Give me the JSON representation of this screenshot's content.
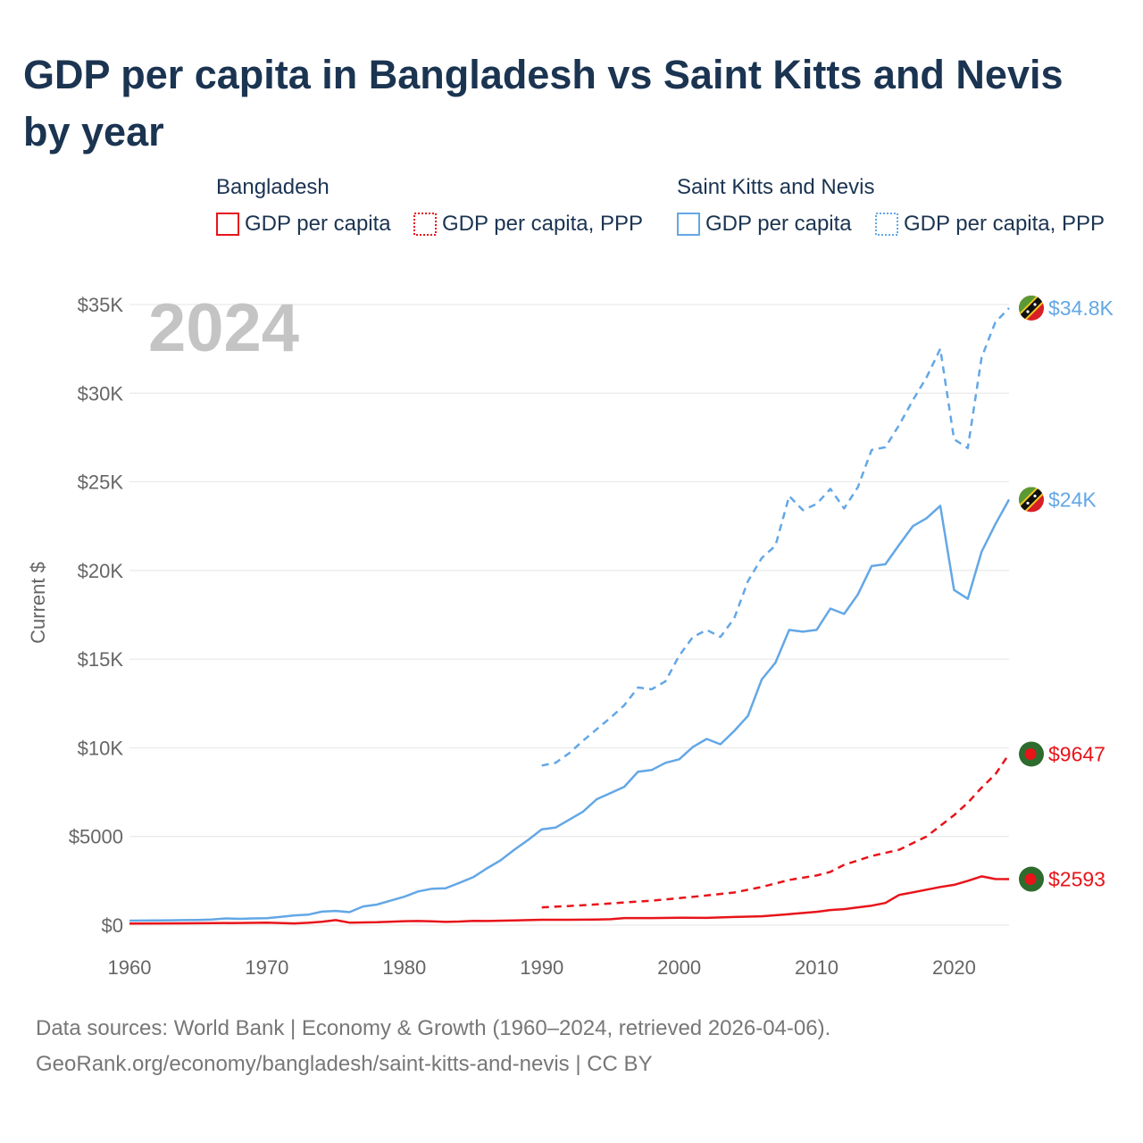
{
  "title": "GDP per capita in Bangladesh vs Saint Kitts and Nevis by year",
  "legend": {
    "groups": [
      {
        "name": "Bangladesh",
        "items": [
          {
            "label": "GDP per capita",
            "color": "#e8141a",
            "style": "solid"
          },
          {
            "label": "GDP per capita, PPP",
            "color": "#e8141a",
            "style": "dotted"
          }
        ]
      },
      {
        "name": "Saint Kitts and Nevis",
        "items": [
          {
            "label": "GDP per capita",
            "color": "#63a7e6",
            "style": "solid"
          },
          {
            "label": "GDP per capita, PPP",
            "color": "#63a7e6",
            "style": "dotted"
          }
        ]
      }
    ]
  },
  "year_watermark": "2024",
  "sources": {
    "line1": "Data sources: World Bank | Economy & Growth (1960–2024, retrieved 2026-04-06).",
    "line2": "GeoRank.org/economy/bangladesh/saint-kitts-and-nevis | CC BY"
  },
  "chart_data": {
    "type": "line",
    "title": "GDP per capita in Bangladesh vs Saint Kitts and Nevis by year",
    "xlabel": "",
    "ylabel": "Current $",
    "xlim": [
      1960,
      2024
    ],
    "ylim": [
      0,
      35000
    ],
    "x_ticks": [
      1960,
      1970,
      1980,
      1990,
      2000,
      2010,
      2020
    ],
    "x_tick_labels": [
      "1960",
      "1970",
      "1980",
      "1990",
      "2000",
      "2010",
      "2020"
    ],
    "y_ticks": [
      0,
      5000,
      10000,
      15000,
      20000,
      25000,
      30000,
      35000
    ],
    "y_tick_labels": [
      "$0",
      "$5000",
      "$10K",
      "$15K",
      "$20K",
      "$25K",
      "$30K",
      "$35K"
    ],
    "grid": true,
    "series": [
      {
        "name": "Saint Kitts and Nevis — GDP per capita, PPP",
        "color": "#63a7e6",
        "dash": "dashed",
        "end_label": "$34.8K",
        "flag": "saint-kitts-and-nevis",
        "points": [
          [
            1990,
            9000
          ],
          [
            1991,
            9150
          ],
          [
            1992,
            9700
          ],
          [
            1993,
            10400
          ],
          [
            1994,
            11050
          ],
          [
            1995,
            11700
          ],
          [
            1996,
            12400
          ],
          [
            1997,
            13400
          ],
          [
            1998,
            13300
          ],
          [
            1999,
            13750
          ],
          [
            2000,
            15200
          ],
          [
            2001,
            16250
          ],
          [
            2002,
            16650
          ],
          [
            2003,
            16250
          ],
          [
            2004,
            17300
          ],
          [
            2005,
            19400
          ],
          [
            2006,
            20700
          ],
          [
            2007,
            21400
          ],
          [
            2008,
            24200
          ],
          [
            2009,
            23400
          ],
          [
            2010,
            23750
          ],
          [
            2011,
            24600
          ],
          [
            2012,
            23500
          ],
          [
            2013,
            24700
          ],
          [
            2014,
            26800
          ],
          [
            2015,
            26950
          ],
          [
            2016,
            28200
          ],
          [
            2017,
            29600
          ],
          [
            2018,
            30900
          ],
          [
            2019,
            32500
          ],
          [
            2020,
            27400
          ],
          [
            2021,
            26900
          ],
          [
            2022,
            32000
          ],
          [
            2023,
            34000
          ],
          [
            2024,
            34800
          ]
        ]
      },
      {
        "name": "Saint Kitts and Nevis — GDP per capita",
        "color": "#63a7e6",
        "dash": "solid",
        "end_label": "$24K",
        "flag": "saint-kitts-and-nevis",
        "points": [
          [
            1960,
            250
          ],
          [
            1961,
            255
          ],
          [
            1962,
            260
          ],
          [
            1963,
            270
          ],
          [
            1964,
            280
          ],
          [
            1965,
            290
          ],
          [
            1966,
            310
          ],
          [
            1967,
            380
          ],
          [
            1968,
            350
          ],
          [
            1969,
            380
          ],
          [
            1970,
            390
          ],
          [
            1971,
            470
          ],
          [
            1972,
            550
          ],
          [
            1973,
            590
          ],
          [
            1974,
            760
          ],
          [
            1975,
            800
          ],
          [
            1976,
            730
          ],
          [
            1977,
            1050
          ],
          [
            1978,
            1160
          ],
          [
            1979,
            1380
          ],
          [
            1980,
            1600
          ],
          [
            1981,
            1900
          ],
          [
            1982,
            2050
          ],
          [
            1983,
            2080
          ],
          [
            1984,
            2380
          ],
          [
            1985,
            2700
          ],
          [
            1986,
            3200
          ],
          [
            1987,
            3650
          ],
          [
            1988,
            4250
          ],
          [
            1989,
            4800
          ],
          [
            1990,
            5400
          ],
          [
            1991,
            5500
          ],
          [
            1992,
            5950
          ],
          [
            1993,
            6400
          ],
          [
            1994,
            7100
          ],
          [
            1995,
            7450
          ],
          [
            1996,
            7800
          ],
          [
            1997,
            8650
          ],
          [
            1998,
            8750
          ],
          [
            1999,
            9150
          ],
          [
            2000,
            9350
          ],
          [
            2001,
            10050
          ],
          [
            2002,
            10500
          ],
          [
            2003,
            10200
          ],
          [
            2004,
            10950
          ],
          [
            2005,
            11800
          ],
          [
            2006,
            13850
          ],
          [
            2007,
            14800
          ],
          [
            2008,
            16650
          ],
          [
            2009,
            16550
          ],
          [
            2010,
            16650
          ],
          [
            2011,
            17850
          ],
          [
            2012,
            17550
          ],
          [
            2013,
            18650
          ],
          [
            2014,
            20250
          ],
          [
            2015,
            20350
          ],
          [
            2016,
            21450
          ],
          [
            2017,
            22500
          ],
          [
            2018,
            22950
          ],
          [
            2019,
            23650
          ],
          [
            2020,
            18900
          ],
          [
            2021,
            18400
          ],
          [
            2022,
            21050
          ],
          [
            2023,
            22600
          ],
          [
            2024,
            24000
          ]
        ]
      },
      {
        "name": "Bangladesh — GDP per capita, PPP",
        "color": "#e8141a",
        "dash": "dashed",
        "end_label": "$9647",
        "flag": "bangladesh",
        "points": [
          [
            1990,
            1000
          ],
          [
            1992,
            1080
          ],
          [
            1994,
            1170
          ],
          [
            1996,
            1280
          ],
          [
            1998,
            1380
          ],
          [
            2000,
            1520
          ],
          [
            2002,
            1670
          ],
          [
            2004,
            1840
          ],
          [
            2006,
            2150
          ],
          [
            2008,
            2550
          ],
          [
            2010,
            2800
          ],
          [
            2011,
            3000
          ],
          [
            2012,
            3400
          ],
          [
            2014,
            3900
          ],
          [
            2016,
            4250
          ],
          [
            2018,
            5000
          ],
          [
            2019,
            5600
          ],
          [
            2020,
            6200
          ],
          [
            2021,
            6900
          ],
          [
            2022,
            7750
          ],
          [
            2023,
            8500
          ],
          [
            2024,
            9647
          ]
        ]
      },
      {
        "name": "Bangladesh — GDP per capita",
        "color": "#e8141a",
        "dash": "solid",
        "end_label": "$2593",
        "flag": "bangladesh",
        "points": [
          [
            1960,
            90
          ],
          [
            1962,
            95
          ],
          [
            1964,
            100
          ],
          [
            1966,
            110
          ],
          [
            1968,
            120
          ],
          [
            1970,
            140
          ],
          [
            1972,
            95
          ],
          [
            1973,
            130
          ],
          [
            1974,
            190
          ],
          [
            1975,
            280
          ],
          [
            1976,
            140
          ],
          [
            1978,
            160
          ],
          [
            1980,
            220
          ],
          [
            1981,
            230
          ],
          [
            1982,
            210
          ],
          [
            1983,
            180
          ],
          [
            1984,
            200
          ],
          [
            1985,
            240
          ],
          [
            1986,
            230
          ],
          [
            1988,
            260
          ],
          [
            1990,
            300
          ],
          [
            1992,
            300
          ],
          [
            1994,
            310
          ],
          [
            1995,
            330
          ],
          [
            1996,
            400
          ],
          [
            1998,
            400
          ],
          [
            2000,
            420
          ],
          [
            2002,
            410
          ],
          [
            2004,
            460
          ],
          [
            2006,
            500
          ],
          [
            2008,
            620
          ],
          [
            2010,
            750
          ],
          [
            2011,
            850
          ],
          [
            2012,
            900
          ],
          [
            2013,
            1000
          ],
          [
            2014,
            1100
          ],
          [
            2015,
            1250
          ],
          [
            2016,
            1700
          ],
          [
            2017,
            1850
          ],
          [
            2018,
            2000
          ],
          [
            2019,
            2150
          ],
          [
            2020,
            2270
          ],
          [
            2021,
            2500
          ],
          [
            2022,
            2750
          ],
          [
            2023,
            2600
          ],
          [
            2024,
            2593
          ]
        ]
      }
    ]
  }
}
